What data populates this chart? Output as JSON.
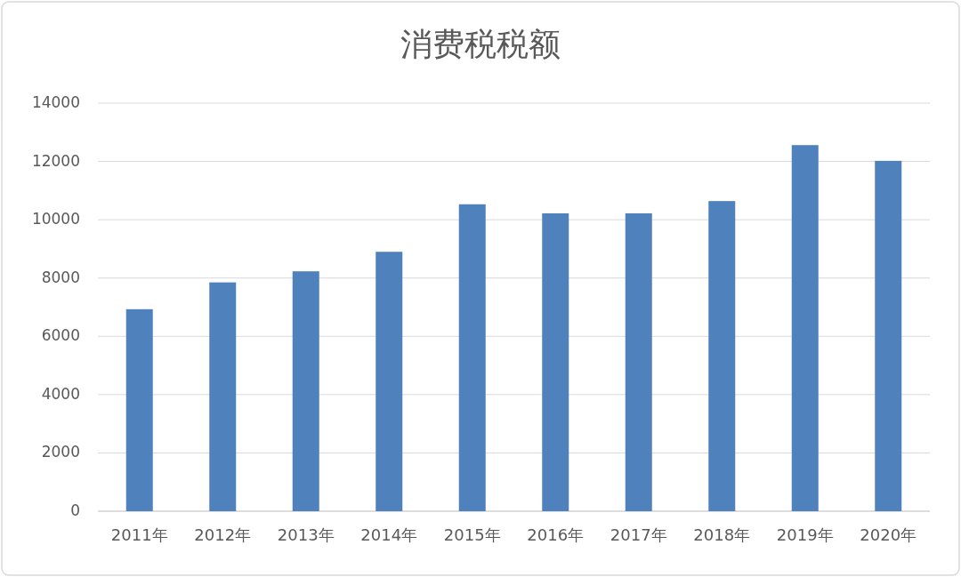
{
  "chart_data": {
    "type": "bar",
    "title": "消费税税额",
    "categories": [
      "2011年",
      "2012年",
      "2013年",
      "2014年",
      "2015年",
      "2016年",
      "2017年",
      "2018年",
      "2019年",
      "2020年"
    ],
    "values": [
      6930,
      7850,
      8230,
      8900,
      10530,
      10220,
      10220,
      10640,
      12560,
      12020
    ],
    "color": "#4f81bd",
    "ylim": [
      0,
      14000
    ],
    "yticks": [
      0,
      2000,
      4000,
      6000,
      8000,
      10000,
      12000,
      14000
    ],
    "grid": "y"
  }
}
